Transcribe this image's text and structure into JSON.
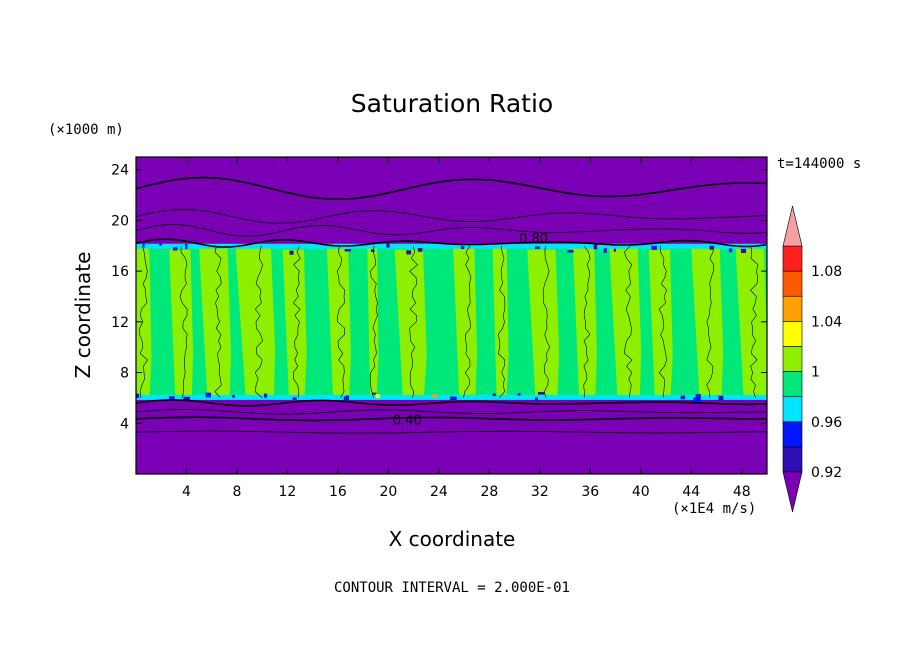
{
  "chart_data": {
    "type": "heatmap",
    "title": "Saturation Ratio",
    "xlabel": "X coordinate",
    "ylabel": "Z coordinate",
    "x_unit": "(×1E4 m/s)",
    "y_unit": "(×1000 m)",
    "time_label": "t=144000 s",
    "footer": "CONTOUR INTERVAL = 2.000E-01",
    "xlim": [
      0,
      50
    ],
    "ylim": [
      0,
      25
    ],
    "x_ticks": [
      4,
      8,
      12,
      16,
      20,
      24,
      28,
      32,
      36,
      40,
      44,
      48
    ],
    "y_ticks": [
      4,
      8,
      12,
      16,
      20,
      24
    ],
    "colorbar": {
      "levels": [
        0.92,
        0.94,
        0.96,
        0.98,
        1.0,
        1.02,
        1.04,
        1.06,
        1.08,
        1.1
      ],
      "colors": [
        "#7b00b5",
        "#2e0db5",
        "#0016ff",
        "#00e5ff",
        "#00e87a",
        "#8ef000",
        "#ffff00",
        "#ffa000",
        "#ff5a00",
        "#ff2020",
        "#f5a0a0"
      ],
      "tick_labels": [
        {
          "value": 0.92,
          "label": "0.92"
        },
        {
          "value": 0.96,
          "label": "0.96"
        },
        {
          "value": 1.0,
          "label": "1"
        },
        {
          "value": 1.04,
          "label": "1.04"
        },
        {
          "value": 1.08,
          "label": "1.08"
        }
      ]
    },
    "layers": {
      "lower_dry_top_z": 6,
      "moist_top_z": 18,
      "upper_contour_z": 22.5
    },
    "contour_labels": [
      {
        "x": 21.5,
        "z": 4.3,
        "label": "0.40"
      },
      {
        "x": 31.5,
        "z": 18.6,
        "label": "0.80"
      }
    ],
    "columns": [
      {
        "x0": 0.0,
        "x1": 1.2,
        "band": "mixed"
      },
      {
        "x0": 1.2,
        "x1": 3.0,
        "band": "green"
      },
      {
        "x0": 3.0,
        "x1": 4.5,
        "band": "lime"
      },
      {
        "x0": 4.5,
        "x1": 5.5,
        "band": "green"
      },
      {
        "x0": 5.5,
        "x1": 7.5,
        "band": "lime"
      },
      {
        "x0": 7.5,
        "x1": 8.5,
        "band": "green"
      },
      {
        "x0": 8.5,
        "x1": 11.0,
        "band": "lime"
      },
      {
        "x0": 11.0,
        "x1": 12.0,
        "band": "green"
      },
      {
        "x0": 12.0,
        "x1": 13.5,
        "band": "lime"
      },
      {
        "x0": 13.5,
        "x1": 15.5,
        "band": "green"
      },
      {
        "x0": 15.5,
        "x1": 17.0,
        "band": "lime"
      },
      {
        "x0": 17.0,
        "x1": 18.5,
        "band": "green"
      },
      {
        "x0": 18.5,
        "x1": 19.2,
        "band": "lime"
      },
      {
        "x0": 19.2,
        "x1": 21.0,
        "band": "green"
      },
      {
        "x0": 21.0,
        "x1": 23.0,
        "band": "lime"
      },
      {
        "x0": 23.0,
        "x1": 25.5,
        "band": "green"
      },
      {
        "x0": 25.5,
        "x1": 27.0,
        "band": "lime"
      },
      {
        "x0": 27.0,
        "x1": 28.5,
        "band": "green"
      },
      {
        "x0": 28.5,
        "x1": 29.5,
        "band": "lime"
      },
      {
        "x0": 29.5,
        "x1": 31.5,
        "band": "green"
      },
      {
        "x0": 31.5,
        "x1": 33.5,
        "band": "lime"
      },
      {
        "x0": 33.5,
        "x1": 35.0,
        "band": "green"
      },
      {
        "x0": 35.0,
        "x1": 36.5,
        "band": "lime"
      },
      {
        "x0": 36.5,
        "x1": 38.0,
        "band": "green"
      },
      {
        "x0": 38.0,
        "x1": 40.0,
        "band": "lime"
      },
      {
        "x0": 40.0,
        "x1": 41.0,
        "band": "green"
      },
      {
        "x0": 41.0,
        "x1": 42.5,
        "band": "lime"
      },
      {
        "x0": 42.5,
        "x1": 44.5,
        "band": "green"
      },
      {
        "x0": 44.5,
        "x1": 46.5,
        "band": "lime"
      },
      {
        "x0": 46.5,
        "x1": 48.0,
        "band": "green"
      },
      {
        "x0": 48.0,
        "x1": 50.0,
        "band": "lime"
      }
    ]
  }
}
